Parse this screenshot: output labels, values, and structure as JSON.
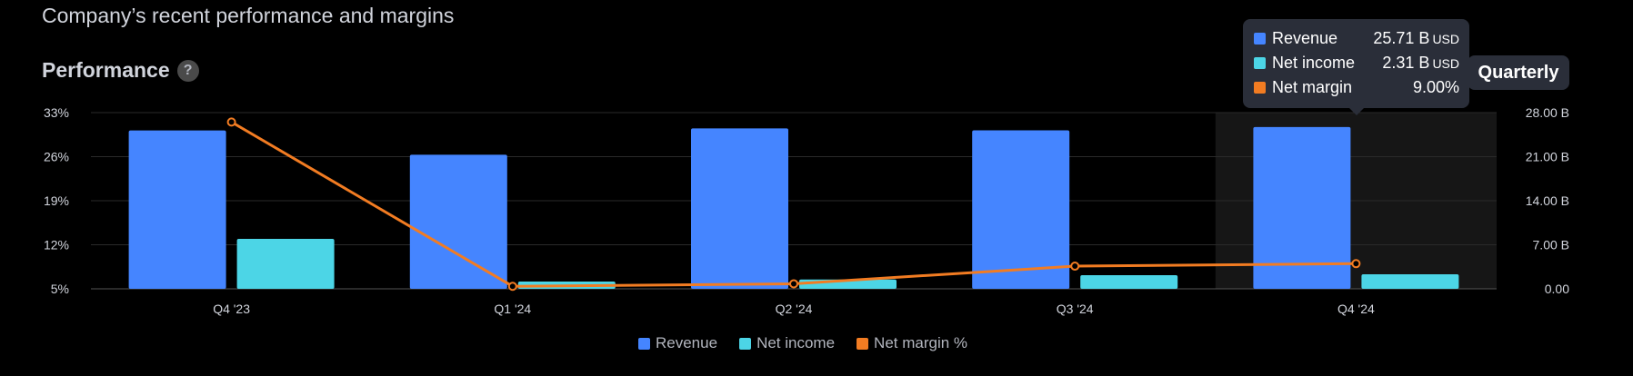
{
  "header": {
    "section_title": "Company’s recent performance and margins",
    "performance_title": "Performance",
    "help_icon": "question-mark-icon",
    "help_glyph": "?",
    "period_label": "Quarterly"
  },
  "colors": {
    "revenue": "#4585ff",
    "net_income": "#4cd5e6",
    "net_margin": "#f27c22",
    "background": "#000000",
    "highlight_band": "#161616",
    "grid": "#2a2a2a",
    "tooltip_bg": "#2a2e39"
  },
  "tooltip": {
    "rows": [
      {
        "name": "Revenue",
        "value": "25.71 B",
        "unit": "USD"
      },
      {
        "name": "Net income",
        "value": "2.31 B",
        "unit": "USD"
      },
      {
        "name": "Net margin",
        "value": "9.00%",
        "unit": ""
      }
    ]
  },
  "legend": [
    "Revenue",
    "Net income",
    "Net margin %"
  ],
  "chart_data": {
    "type": "bar",
    "categories": [
      "Q4 '23",
      "Q1 '24",
      "Q2 '24",
      "Q3 '24",
      "Q4 '24"
    ],
    "highlighted_category": "Q4 '24",
    "series": [
      {
        "name": "Revenue",
        "axis": "right",
        "type": "bar",
        "values": [
          25.17,
          21.3,
          25.5,
          25.18,
          25.71
        ]
      },
      {
        "name": "Net income",
        "axis": "right",
        "type": "bar",
        "values": [
          7.93,
          1.15,
          1.48,
          2.17,
          2.31
        ]
      },
      {
        "name": "Net margin %",
        "axis": "left",
        "type": "line",
        "values": [
          31.5,
          5.4,
          5.8,
          8.6,
          9.0
        ]
      }
    ],
    "left_axis": {
      "ticks": [
        "33%",
        "26%",
        "19%",
        "12%",
        "5%"
      ],
      "range": [
        5,
        33
      ]
    },
    "right_axis": {
      "ticks": [
        "28.00 B",
        "21.00 B",
        "14.00 B",
        "7.00 B",
        "0.00"
      ],
      "range": [
        0,
        28
      ]
    },
    "grid": true,
    "legend_position": "bottom-center"
  }
}
